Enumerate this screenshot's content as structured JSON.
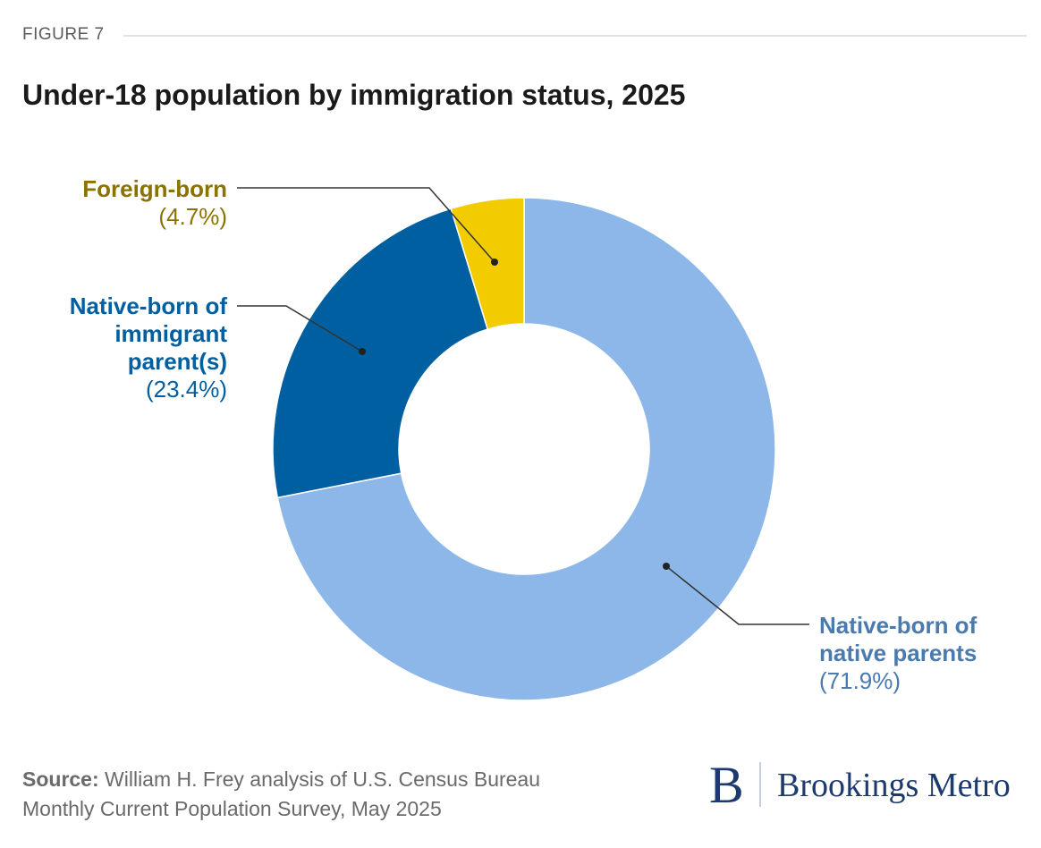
{
  "figure_label": "FIGURE 7",
  "chart_data": {
    "type": "pie",
    "donut": true,
    "title": "Under-18 population by immigration status, 2025",
    "slices": [
      {
        "name": "Native-born of native parents",
        "value": 71.9,
        "label": "(71.9%)",
        "color": "#8db7e8",
        "text_color": "#4a7aae"
      },
      {
        "name": "Native-born of immigrant parent(s)",
        "value": 23.4,
        "label": "(23.4%)",
        "color": "#005fa0",
        "text_color": "#005fa0"
      },
      {
        "name": "Foreign-born",
        "value": 4.7,
        "label": "(4.7%)",
        "color": "#f2cc00",
        "text_color": "#8a7300"
      }
    ]
  },
  "labels": {
    "foreign": [
      "Foreign-born"
    ],
    "immigrant": [
      "Native-born of",
      "immigrant",
      "parent(s)"
    ],
    "native": [
      "Native-born of",
      "native parents"
    ]
  },
  "source": {
    "prefix": "Source:",
    "line1": " William H. Frey analysis of U.S. Census Bureau",
    "line2": "Monthly Current Population Survey, May 2025"
  },
  "logo": {
    "mark": "B",
    "name": "Brookings Metro"
  }
}
